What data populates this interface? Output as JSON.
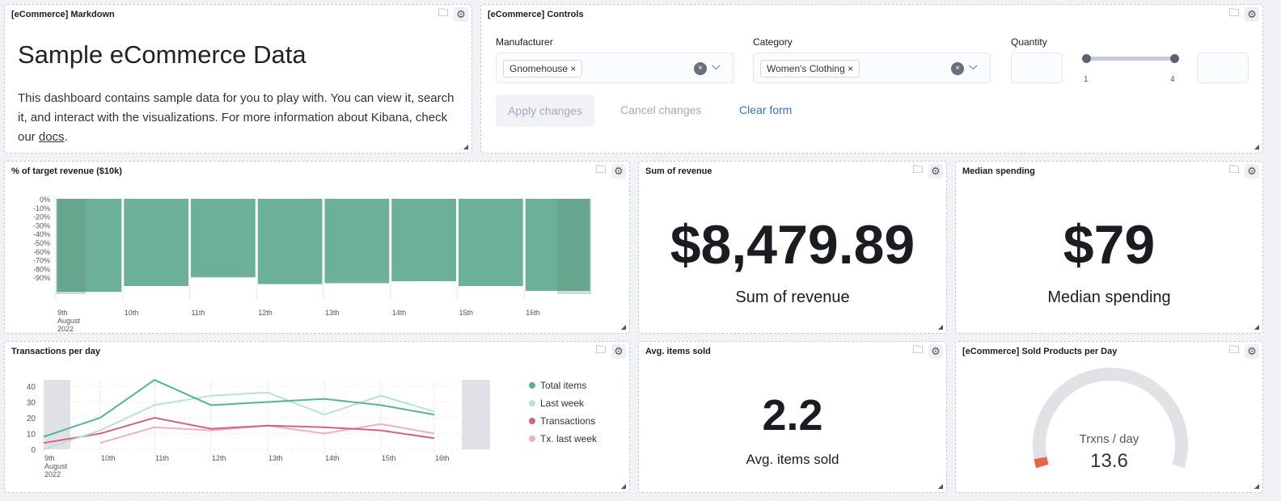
{
  "panels": {
    "markdown": {
      "title": "[eCommerce] Markdown",
      "heading": "Sample eCommerce Data",
      "body": "This dashboard contains sample data for you to play with. You can view it, search it, and interact with the visualizations. For more information about Kibana, check our ",
      "link": "docs",
      "end": "."
    },
    "controls": {
      "title": "[eCommerce] Controls",
      "manufacturer": {
        "label": "Manufacturer",
        "selected": "Gnomehouse"
      },
      "category": {
        "label": "Category",
        "selected": "Women's Clothing"
      },
      "quantity": {
        "label": "Quantity",
        "min": "1",
        "max": "4"
      },
      "apply": "Apply changes",
      "cancel": "Cancel changes",
      "clear": "Clear form"
    },
    "target": {
      "title": "% of target revenue ($10k)"
    },
    "sum": {
      "title": "Sum of revenue",
      "value": "$8,479.89",
      "label": "Sum of revenue"
    },
    "median": {
      "title": "Median spending",
      "value": "$79",
      "label": "Median spending"
    },
    "transactions": {
      "title": "Transactions per day"
    },
    "avg": {
      "title": "Avg. items sold",
      "value": "2.2",
      "label": "Avg. items sold"
    },
    "gauge": {
      "title": "[eCommerce] Sold Products per Day",
      "label": "Trxns / day",
      "value": "13.6",
      "fill_fraction": 0.02,
      "color": "#e7664c"
    }
  },
  "icons": {
    "panel_icons": [
      "folder-badge-icon",
      "gear-icon"
    ]
  },
  "chart_data": [
    {
      "type": "bar",
      "categories": [
        "9th",
        "10th",
        "11th",
        "12th",
        "13th",
        "14th",
        "15th",
        "16th"
      ],
      "x_first_sub": "August",
      "x_first_sub2": "2022",
      "values": [
        -96,
        -90,
        -81,
        -88,
        -87,
        -85,
        -90,
        -95
      ],
      "yticks": [
        "0%",
        "-10%",
        "-20%",
        "-30%",
        "-40%",
        "-50%",
        "-60%",
        "-70%",
        "-80%",
        "-90%"
      ],
      "ylim": [
        -96,
        0
      ],
      "color": "#6db099"
    },
    {
      "type": "line",
      "categories": [
        "9th",
        "10th",
        "11th",
        "12th",
        "13th",
        "14th",
        "15th",
        "16th"
      ],
      "x_first_sub": "August",
      "x_first_sub2": "2022",
      "yticks": [
        "0",
        "10",
        "20",
        "30",
        "40"
      ],
      "ylim": [
        0,
        45
      ],
      "legend": "right",
      "series": [
        {
          "name": "Total items",
          "color": "#54b399",
          "values": [
            8,
            20,
            44,
            28,
            30,
            32,
            28,
            22
          ]
        },
        {
          "name": "Last week",
          "color": "#b9e2d2",
          "values": [
            0,
            12,
            28,
            34,
            36,
            22,
            34,
            24
          ]
        },
        {
          "name": "Transactions",
          "color": "#d36086",
          "values": [
            4,
            10,
            20,
            13,
            15,
            14,
            12,
            7
          ]
        },
        {
          "name": "Tx. last week",
          "color": "#eeafc4",
          "values": [
            null,
            4,
            14,
            12,
            15,
            10,
            16,
            10
          ]
        }
      ]
    }
  ]
}
